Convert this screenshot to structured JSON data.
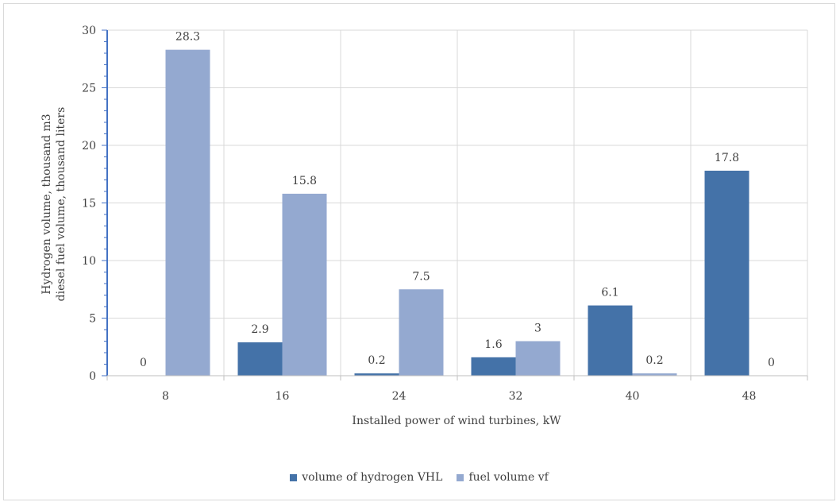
{
  "chart_data": {
    "type": "bar",
    "categories": [
      "8",
      "16",
      "24",
      "32",
      "40",
      "48"
    ],
    "series": [
      {
        "name": "volume of hydrogen VHL",
        "values": [
          0,
          2.9,
          0.2,
          1.6,
          6.1,
          17.8
        ],
        "color": "#4472a8"
      },
      {
        "name": "fuel volume vf",
        "values": [
          28.3,
          15.8,
          7.5,
          3,
          0.2,
          0
        ],
        "color": "#94a9d0"
      }
    ],
    "data_labels": [
      [
        "0",
        "2.9",
        "0.2",
        "1.6",
        "6.1",
        "17.8"
      ],
      [
        "28.3",
        "15.8",
        "7.5",
        "3",
        "0.2",
        "0"
      ]
    ],
    "ylabel_line1": "Hydrogen volume, thousand m3",
    "ylabel_line2": "diesel fuel volume, thousand liters",
    "xlabel": "Installed power of wind turbines, kW",
    "ylim": [
      0,
      30
    ],
    "yticks": [
      "0",
      "5",
      "10",
      "15",
      "20",
      "25",
      "30"
    ],
    "grid": true,
    "legend_position": "bottom"
  }
}
